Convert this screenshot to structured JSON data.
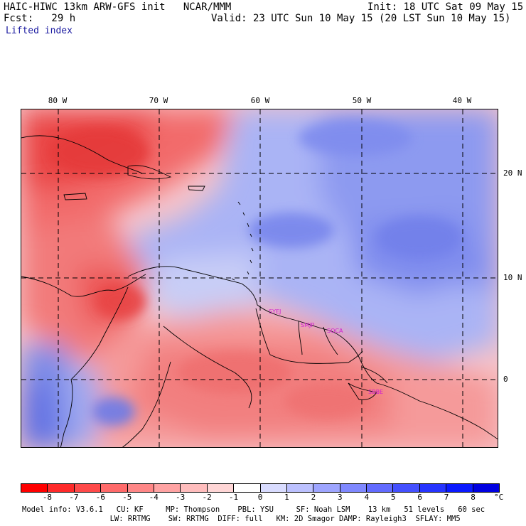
{
  "header": {
    "model_line": "HAIC-HIWC 13km ARW-GFS init   NCAR/MMM",
    "init_line": "Init: 18 UTC Sat 09 May 15",
    "fcst_line": "Fcst:   29 h",
    "valid_line": "Valid: 23 UTC Sun 10 May 15 (20 LST Sun 10 May 15)",
    "field_name": "Lifted index"
  },
  "map": {
    "lon_labels": [
      "80 W",
      "70 W",
      "60 W",
      "50 W",
      "40 W"
    ],
    "lat_labels": [
      "20 N",
      "10 N",
      "0"
    ],
    "stations": [
      "SYEJ",
      "SMJP",
      "SOCA",
      "SBBE"
    ],
    "colors": {
      "unstable": "#e8423b",
      "stable": "#4d5fe0",
      "neutral": "#ffffff",
      "station": "#d020d0"
    }
  },
  "colorbar": {
    "labels": [
      "-8",
      "-7",
      "-6",
      "-5",
      "-4",
      "-3",
      "-2",
      "-1",
      "0",
      "1",
      "2",
      "3",
      "4",
      "5",
      "6",
      "7",
      "8"
    ],
    "unit": "°C",
    "colors": [
      "#ff0000",
      "#ff2a2a",
      "#ff4a4a",
      "#ff6a6a",
      "#ff8787",
      "#ffa3a3",
      "#ffbdbd",
      "#ffd6d6",
      "#ffffff",
      "#d9dcff",
      "#bcc1ff",
      "#9ea5ff",
      "#7f88ff",
      "#626bff",
      "#4450ff",
      "#2634ff",
      "#0a19ff",
      "#0000e0"
    ]
  },
  "footer": {
    "line1": "Model info: V3.6.1   CU: KF     MP: Thompson    PBL: YSU     SF: Noah LSM    13 km   51 levels   60 sec",
    "line2": "     LW: RRTMG    SW: RRTMG  DIFF: full   KM: 2D Smagor DAMP: Rayleigh3  SFLAY: MM5"
  }
}
